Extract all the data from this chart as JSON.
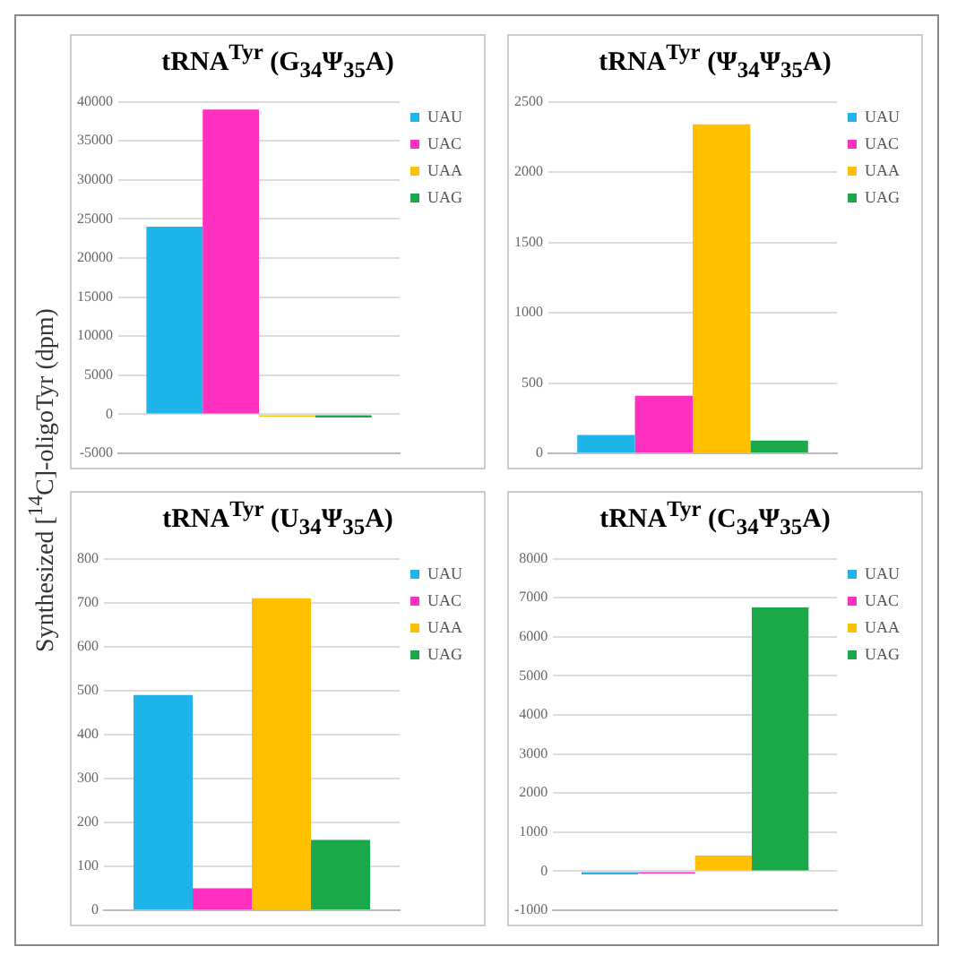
{
  "chart_data": [
    {
      "type": "bar",
      "title": "tRNA$^{Tyr}$ (G$_{34}$Ψ$_{35}$A)",
      "ylabel": "Synthesized [$^{14}$C]-oligoTyr (dpm)",
      "categories": [
        null
      ],
      "series": [
        {
          "name": "UAU",
          "color": "#1fb4ea",
          "values": [
            24000
          ]
        },
        {
          "name": "UAC",
          "color": "#ff2fc0",
          "values": [
            39000
          ]
        },
        {
          "name": "UAA",
          "color": "#ffc000",
          "values": [
            -300
          ]
        },
        {
          "name": "UAG",
          "color": "#1aa84a",
          "values": [
            -400
          ]
        }
      ],
      "ylim": [
        -5000,
        40000
      ],
      "yticks": [
        -5000,
        0,
        5000,
        10000,
        15000,
        20000,
        25000,
        30000,
        35000,
        40000
      ],
      "grid": "y",
      "legend": "top right",
      "tick_labels": "y"
    },
    {
      "type": "bar",
      "title": "tRNA$^{Tyr}$ (Ψ$_{34}$Ψ$_{35}$A)",
      "categories": [
        null
      ],
      "series": [
        {
          "name": "UAU",
          "color": "#1fb4ea",
          "values": [
            130
          ]
        },
        {
          "name": "UAC",
          "color": "#ff2fc0",
          "values": [
            410
          ]
        },
        {
          "name": "UAA",
          "color": "#ffc000",
          "values": [
            2340
          ]
        },
        {
          "name": "UAG",
          "color": "#1aa84a",
          "values": [
            90
          ]
        }
      ],
      "ylim": [
        0,
        2500
      ],
      "yticks": [
        0,
        500,
        1000,
        1500,
        2000,
        2500
      ],
      "grid": "y",
      "legend": "top right",
      "tick_labels": "y"
    },
    {
      "type": "bar",
      "title": "tRNA$^{Tyr}$ (U$_{34}$Ψ$_{35}$A)",
      "categories": [
        null
      ],
      "series": [
        {
          "name": "UAU",
          "color": "#1fb4ea",
          "values": [
            490
          ]
        },
        {
          "name": "UAC",
          "color": "#ff2fc0",
          "values": [
            50
          ]
        },
        {
          "name": "UAA",
          "color": "#ffc000",
          "values": [
            710
          ]
        },
        {
          "name": "UAG",
          "color": "#1aa84a",
          "values": [
            160
          ]
        }
      ],
      "ylim": [
        0,
        800
      ],
      "yticks": [
        0,
        100,
        200,
        300,
        400,
        500,
        600,
        700,
        800
      ],
      "grid": "y",
      "legend": "top right",
      "tick_labels": "y"
    },
    {
      "type": "bar",
      "title": "tRNA$^{Tyr}$ (C$_{34}$Ψ$_{35}$A)",
      "categories": [
        null
      ],
      "series": [
        {
          "name": "UAU",
          "color": "#1fb4ea",
          "values": [
            -80
          ]
        },
        {
          "name": "UAC",
          "color": "#ff2fc0",
          "values": [
            -60
          ]
        },
        {
          "name": "UAA",
          "color": "#ffc000",
          "values": [
            400
          ]
        },
        {
          "name": "UAG",
          "color": "#1aa84a",
          "values": [
            6750
          ]
        }
      ],
      "ylim": [
        -1000,
        8000
      ],
      "yticks": [
        -1000,
        0,
        1000,
        2000,
        3000,
        4000,
        5000,
        6000,
        7000,
        8000
      ],
      "grid": "y",
      "legend": "top right",
      "tick_labels": "y"
    }
  ]
}
